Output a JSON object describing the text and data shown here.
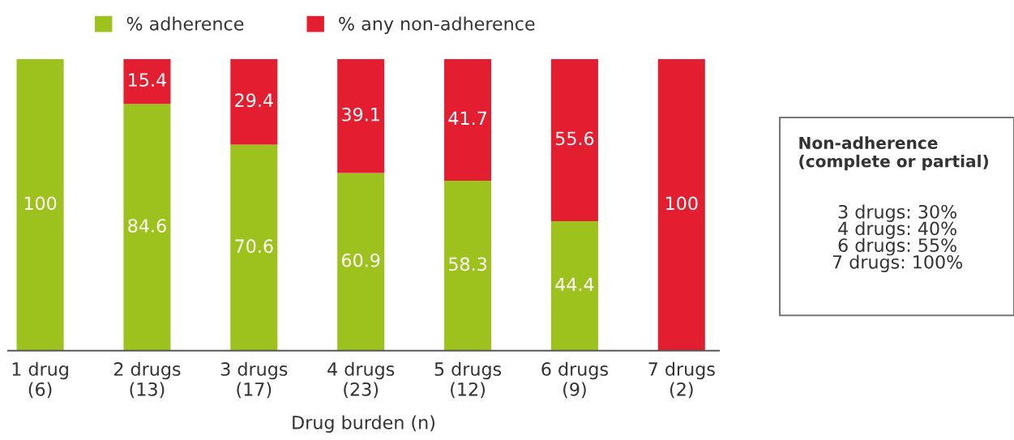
{
  "chart_data": {
    "type": "bar",
    "stacked": true,
    "xlabel": "Drug burden (n)",
    "categories": [
      "1 drug\n(6)",
      "2 drugs\n(13)",
      "3 drugs\n(17)",
      "4 drugs\n(23)",
      "5 drugs\n(12)",
      "6 drugs\n(9)",
      "7 drugs\n(2)"
    ],
    "series": [
      {
        "name": "% adherence",
        "color": "#9dc21e",
        "values": [
          100,
          84.6,
          70.6,
          60.9,
          58.3,
          44.4,
          0
        ],
        "value_labels": [
          "100",
          "84.6",
          "70.6",
          "60.9",
          "58.3",
          "44.4",
          null
        ]
      },
      {
        "name": "% any non-adherence",
        "color": "#e31e30",
        "values": [
          0,
          15.4,
          29.4,
          39.1,
          41.7,
          55.6,
          100
        ],
        "value_labels": [
          null,
          "15.4",
          "29.4",
          "39.1",
          "41.7",
          "55.6",
          "100"
        ]
      }
    ],
    "annotations": [
      "Non-adherence\n(complete or partial)",
      "3 drugs: 30%\n4 drugs: 40%\n6 drugs: 55%\n7 drugs: 100%"
    ],
    "legend": "top left",
    "grid": false
  }
}
